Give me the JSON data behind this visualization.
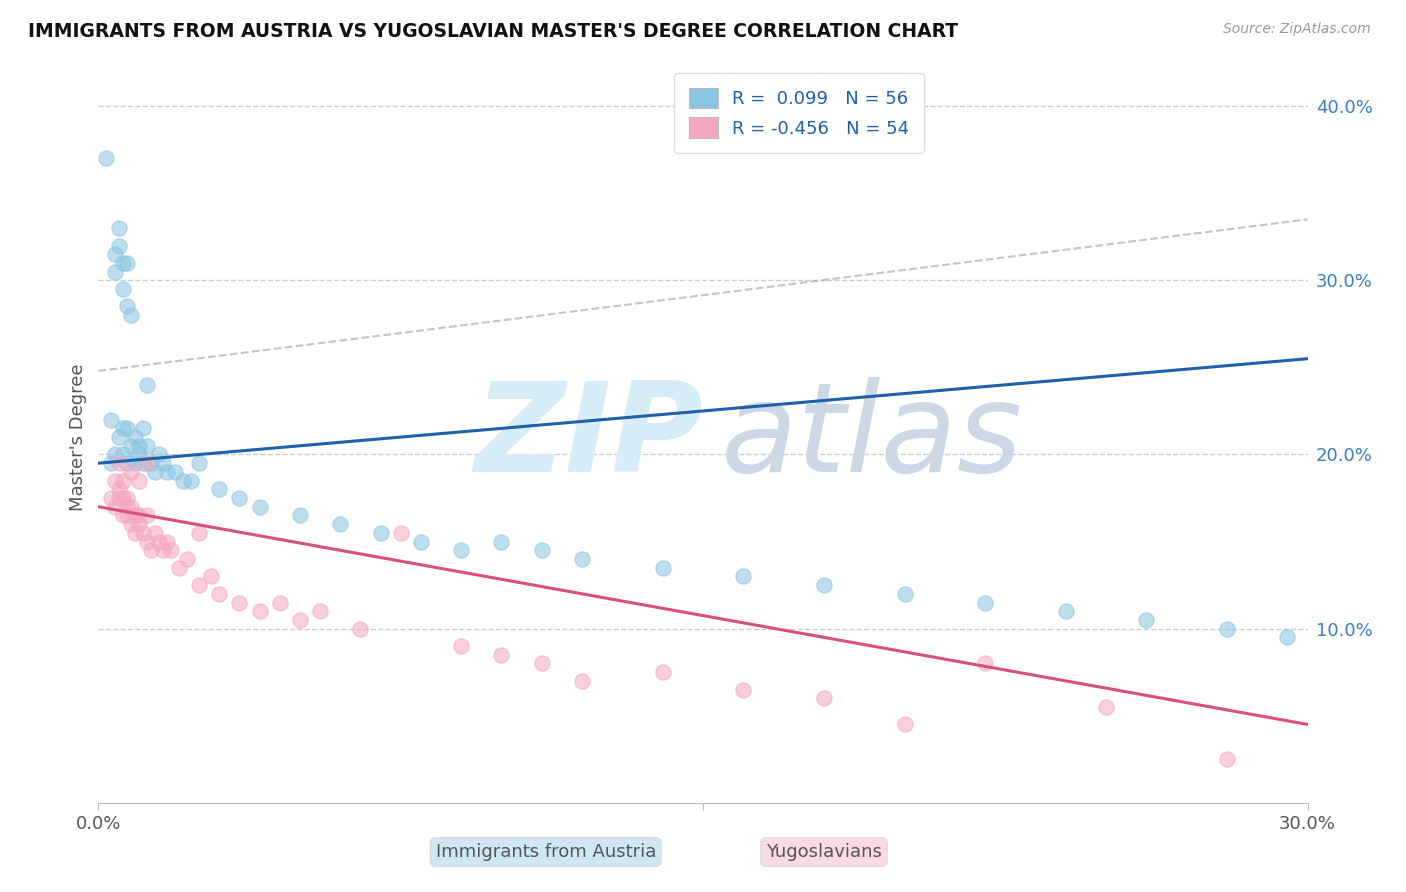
{
  "title": "IMMIGRANTS FROM AUSTRIA VS YUGOSLAVIAN MASTER'S DEGREE CORRELATION CHART",
  "source": "Source: ZipAtlas.com",
  "ylabel": "Master's Degree",
  "xlim": [
    0.0,
    0.3
  ],
  "ylim": [
    0.0,
    0.42
  ],
  "right_yticks": [
    0.1,
    0.2,
    0.3,
    0.4
  ],
  "right_yticklabels": [
    "10.0%",
    "20.0%",
    "30.0%",
    "40.0%"
  ],
  "legend_blue_label": "R =  0.099   N = 56",
  "legend_pink_label": "R = -0.456   N = 54",
  "blue_color": "#89c4e1",
  "pink_color": "#f4a7be",
  "trend_blue_color": "#2060a8",
  "trend_pink_color": "#d94f7a",
  "dash_color": "#aaaaaa",
  "grid_color": "#cccccc",
  "R_blue": 0.099,
  "N_blue": 56,
  "R_pink": -0.456,
  "N_pink": 54,
  "blue_label": "Immigrants from Austria",
  "pink_label": "Yugoslavians",
  "blue_trend_x": [
    0.0,
    0.3
  ],
  "blue_trend_y": [
    0.195,
    0.255
  ],
  "pink_trend_x": [
    0.0,
    0.3
  ],
  "pink_trend_y": [
    0.17,
    0.045
  ],
  "dash_trend_x": [
    0.0,
    0.3
  ],
  "dash_trend_y": [
    0.248,
    0.335
  ],
  "blue_scatter_x": [
    0.002,
    0.003,
    0.003,
    0.004,
    0.004,
    0.004,
    0.005,
    0.005,
    0.005,
    0.006,
    0.006,
    0.006,
    0.006,
    0.007,
    0.007,
    0.007,
    0.007,
    0.008,
    0.008,
    0.009,
    0.009,
    0.01,
    0.01,
    0.011,
    0.011,
    0.012,
    0.012,
    0.013,
    0.014,
    0.015,
    0.016,
    0.017,
    0.019,
    0.021,
    0.023,
    0.025,
    0.03,
    0.035,
    0.04,
    0.05,
    0.06,
    0.07,
    0.08,
    0.09,
    0.1,
    0.11,
    0.12,
    0.14,
    0.16,
    0.18,
    0.2,
    0.22,
    0.24,
    0.26,
    0.28,
    0.295
  ],
  "blue_scatter_y": [
    0.37,
    0.22,
    0.195,
    0.315,
    0.305,
    0.2,
    0.33,
    0.32,
    0.21,
    0.295,
    0.31,
    0.2,
    0.215,
    0.285,
    0.31,
    0.195,
    0.215,
    0.28,
    0.205,
    0.195,
    0.21,
    0.205,
    0.2,
    0.195,
    0.215,
    0.205,
    0.24,
    0.195,
    0.19,
    0.2,
    0.195,
    0.19,
    0.19,
    0.185,
    0.185,
    0.195,
    0.18,
    0.175,
    0.17,
    0.165,
    0.16,
    0.155,
    0.15,
    0.145,
    0.15,
    0.145,
    0.14,
    0.135,
    0.13,
    0.125,
    0.12,
    0.115,
    0.11,
    0.105,
    0.1,
    0.095
  ],
  "pink_scatter_x": [
    0.003,
    0.004,
    0.004,
    0.005,
    0.005,
    0.005,
    0.006,
    0.006,
    0.006,
    0.007,
    0.007,
    0.007,
    0.008,
    0.008,
    0.009,
    0.009,
    0.01,
    0.01,
    0.011,
    0.012,
    0.012,
    0.013,
    0.014,
    0.015,
    0.016,
    0.017,
    0.018,
    0.02,
    0.022,
    0.025,
    0.028,
    0.03,
    0.035,
    0.04,
    0.045,
    0.05,
    0.055,
    0.065,
    0.075,
    0.09,
    0.1,
    0.11,
    0.12,
    0.14,
    0.16,
    0.18,
    0.2,
    0.22,
    0.25,
    0.28,
    0.008,
    0.01,
    0.012,
    0.025
  ],
  "pink_scatter_y": [
    0.175,
    0.185,
    0.17,
    0.175,
    0.18,
    0.195,
    0.165,
    0.175,
    0.185,
    0.165,
    0.17,
    0.175,
    0.16,
    0.17,
    0.155,
    0.165,
    0.16,
    0.165,
    0.155,
    0.15,
    0.165,
    0.145,
    0.155,
    0.15,
    0.145,
    0.15,
    0.145,
    0.135,
    0.14,
    0.125,
    0.13,
    0.12,
    0.115,
    0.11,
    0.115,
    0.105,
    0.11,
    0.1,
    0.155,
    0.09,
    0.085,
    0.08,
    0.07,
    0.075,
    0.065,
    0.06,
    0.045,
    0.08,
    0.055,
    0.025,
    0.19,
    0.185,
    0.195,
    0.155
  ]
}
